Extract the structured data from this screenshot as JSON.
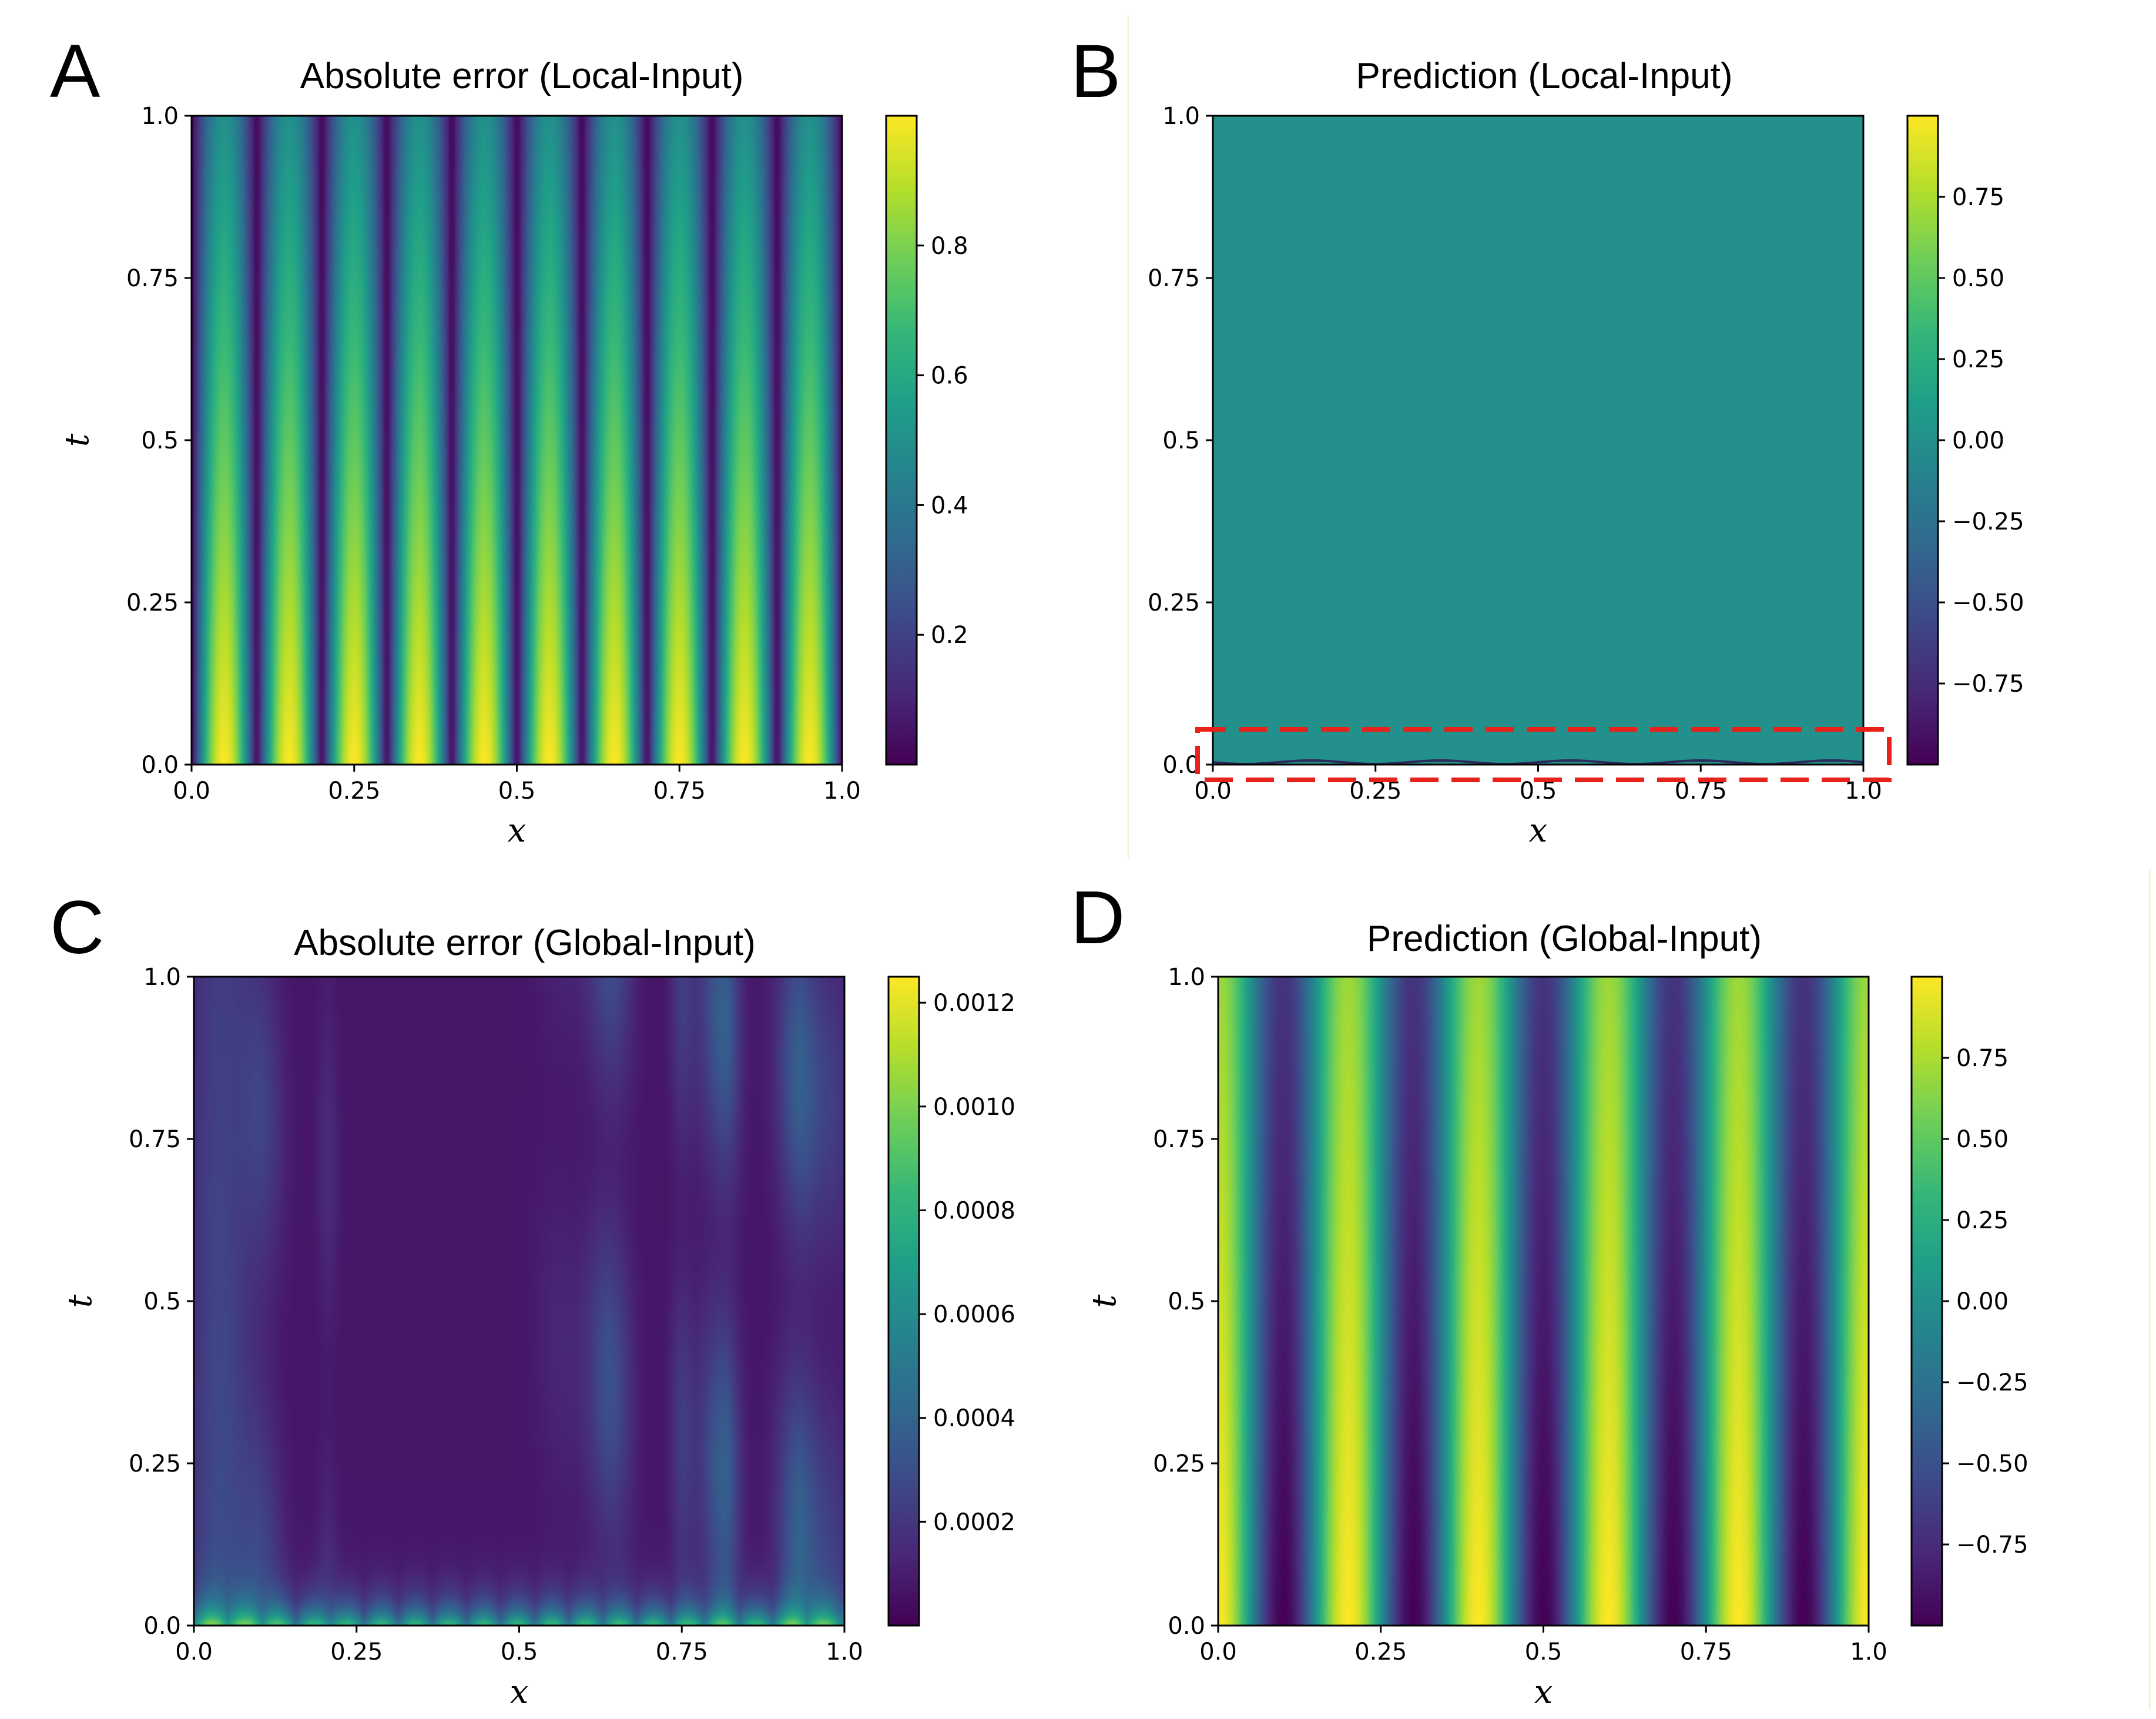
{
  "colors": {
    "viridis": [
      "#440154",
      "#482878",
      "#3e4989",
      "#31688e",
      "#26828e",
      "#1f9e89",
      "#35b779",
      "#6ece58",
      "#b5de2b",
      "#fde725"
    ],
    "highlight_box": "#e8221b",
    "divider": "#eef4d2"
  },
  "chart_data": [
    {
      "panel": "A",
      "type": "heatmap",
      "title": "Absolute error (Local-Input)",
      "xlabel": "x",
      "ylabel": "t",
      "xlim": [
        0,
        1
      ],
      "ylim": [
        0,
        1
      ],
      "xticks": [
        "0.0",
        "0.25",
        "0.5",
        "0.75",
        "1.0"
      ],
      "yticks": [
        "0.0",
        "0.25",
        "0.5",
        "0.75",
        "1.0"
      ],
      "colorbar": {
        "ticks": [
          "0.2",
          "0.4",
          "0.6",
          "0.8"
        ],
        "tick_values": [
          0.2,
          0.4,
          0.6,
          0.8
        ],
        "range": [
          0.0,
          1.0
        ]
      },
      "field": {
        "kind": "abs-sine-decay",
        "frequency": 5,
        "amplitude": 1.0,
        "decay": 0.5
      }
    },
    {
      "panel": "B",
      "type": "heatmap",
      "title": "Prediction (Local-Input)",
      "xlabel": "x",
      "ylabel": "",
      "xlim": [
        0,
        1
      ],
      "ylim": [
        0,
        1
      ],
      "xticks": [
        "0.0",
        "0.25",
        "0.5",
        "0.75",
        "1.0"
      ],
      "yticks": [
        "0.0",
        "0.25",
        "0.5",
        "0.75",
        "1.0"
      ],
      "colorbar": {
        "ticks": [
          "0.75",
          "0.50",
          "0.25",
          "0.00",
          "−0.25",
          "−0.50",
          "−0.75"
        ],
        "tick_values": [
          0.75,
          0.5,
          0.25,
          0.0,
          -0.25,
          -0.5,
          -0.75
        ],
        "range": [
          -1.0,
          1.0
        ]
      },
      "field": {
        "kind": "constant-with-initial",
        "value": 0.0,
        "frequency": 5
      },
      "annotation": "dashed-box-around-t0"
    },
    {
      "panel": "C",
      "type": "heatmap",
      "title": "Absolute error (Global-Input)",
      "xlabel": "x",
      "ylabel": "t",
      "xlim": [
        0,
        1
      ],
      "ylim": [
        0,
        1
      ],
      "xticks": [
        "0.0",
        "0.25",
        "0.5",
        "0.75",
        "1.0"
      ],
      "yticks": [
        "0.0",
        "0.25",
        "0.5",
        "0.75",
        "1.0"
      ],
      "colorbar": {
        "ticks": [
          "0.0012",
          "0.0010",
          "0.0008",
          "0.0006",
          "0.0004",
          "0.0002"
        ],
        "tick_values": [
          0.0012,
          0.001,
          0.0008,
          0.0006,
          0.0004,
          0.0002
        ],
        "range": [
          0.0,
          0.00125
        ]
      },
      "field": {
        "kind": "low-noise-error",
        "peak": 0.00125
      }
    },
    {
      "panel": "D",
      "type": "heatmap",
      "title": "Prediction (Global-Input)",
      "xlabel": "x",
      "ylabel": "t",
      "xlim": [
        0,
        1
      ],
      "ylim": [
        0,
        1
      ],
      "xticks": [
        "0.0",
        "0.25",
        "0.5",
        "0.75",
        "1.0"
      ],
      "yticks": [
        "0.0",
        "0.25",
        "0.5",
        "0.75",
        "1.0"
      ],
      "colorbar": {
        "ticks": [
          "0.75",
          "0.50",
          "0.25",
          "0.00",
          "−0.25",
          "−0.50",
          "−0.75"
        ],
        "tick_values": [
          0.75,
          0.5,
          0.25,
          0.0,
          -0.25,
          -0.5,
          -0.75
        ],
        "range": [
          -1.0,
          1.0
        ]
      },
      "field": {
        "kind": "cos-decay",
        "frequency": 5,
        "decay": 0.3
      }
    }
  ]
}
